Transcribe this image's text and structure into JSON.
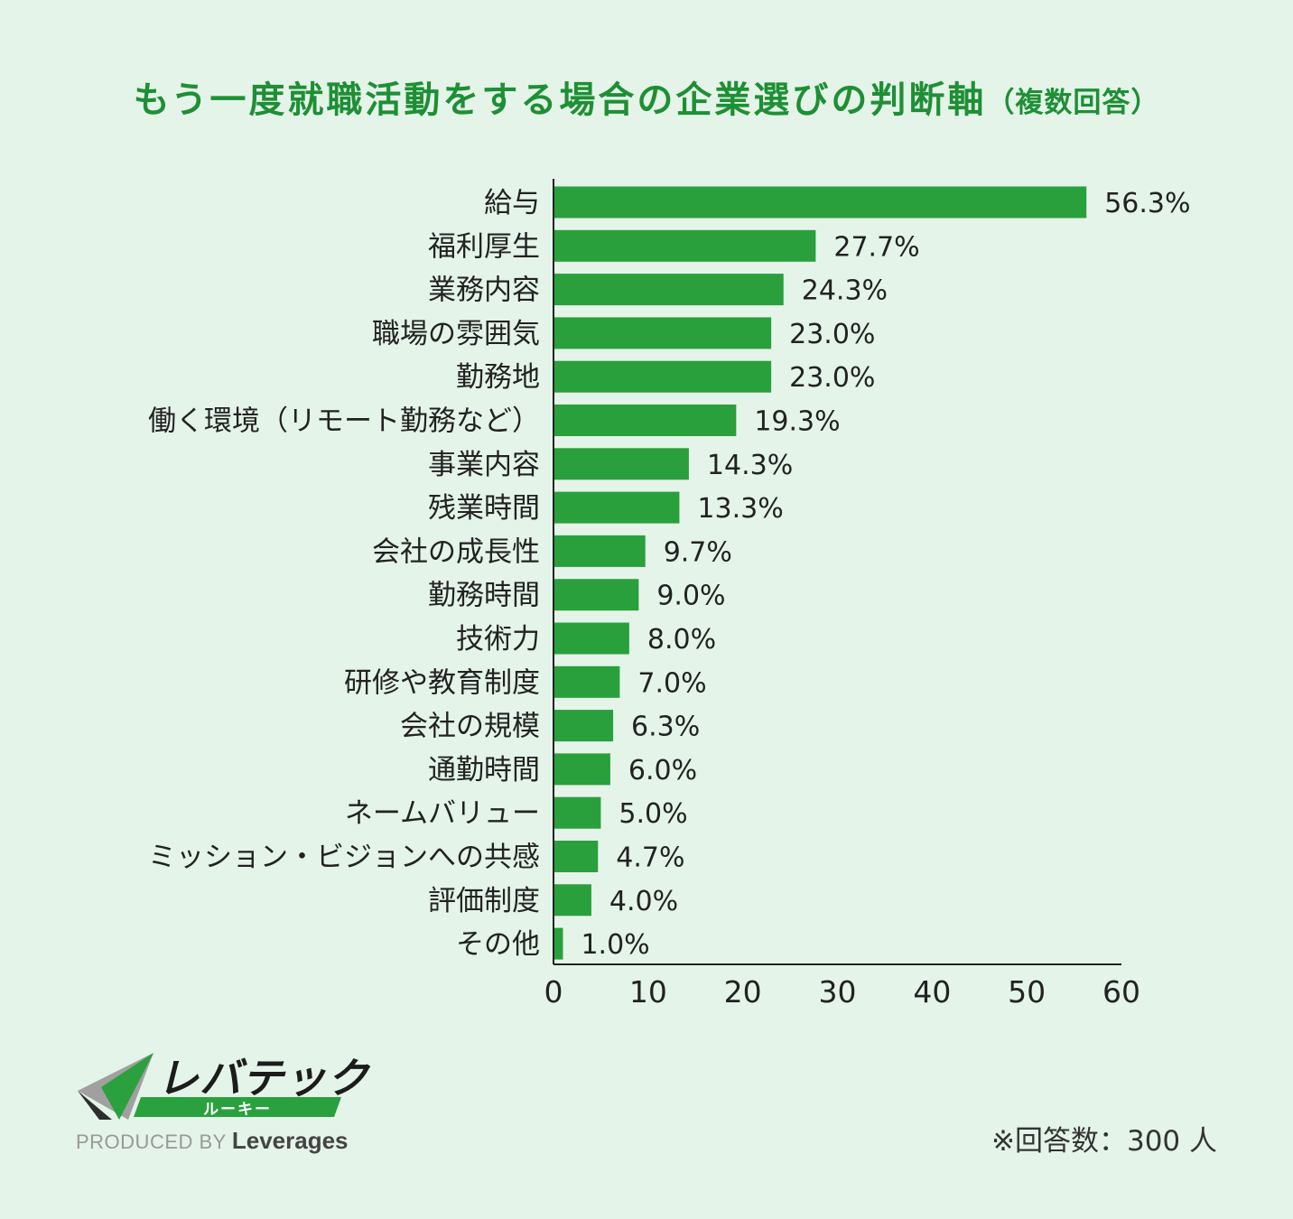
{
  "title": {
    "main": "もう一度就職活動をする場合の企業選びの判断軸",
    "suffix": "（複数回答）"
  },
  "colors": {
    "bar": "#29a03c",
    "title": "#1e8f35",
    "background": "#e4f4e8"
  },
  "chart_data": {
    "type": "bar",
    "orientation": "horizontal",
    "title": "もう一度就職活動をする場合の企業選びの判断軸（複数回答）",
    "categories": [
      "給与",
      "福利厚生",
      "業務内容",
      "職場の雰囲気",
      "勤務地",
      "働く環境（リモート勤務など）",
      "事業内容",
      "残業時間",
      "会社の成長性",
      "勤務時間",
      "技術力",
      "研修や教育制度",
      "会社の規模",
      "通勤時間",
      "ネームバリュー",
      "ミッション・ビジョンへの共感",
      "評価制度",
      "その他"
    ],
    "values": [
      56.3,
      27.7,
      24.3,
      23.0,
      23.0,
      19.3,
      14.3,
      13.3,
      9.7,
      9.0,
      8.0,
      7.0,
      6.3,
      6.0,
      5.0,
      4.7,
      4.0,
      1.0
    ],
    "value_labels": [
      "56.3%",
      "27.7%",
      "24.3%",
      "23.0%",
      "23.0%",
      "19.3%",
      "14.3%",
      "13.3%",
      "9.7%",
      "9.0%",
      "8.0%",
      "7.0%",
      "6.3%",
      "6.0%",
      "5.0%",
      "4.7%",
      "4.0%",
      "1.0%"
    ],
    "xlim": [
      0,
      60
    ],
    "xticks": [
      "0",
      "10",
      "20",
      "30",
      "40",
      "50",
      "60"
    ],
    "xlabel": "",
    "ylabel": "",
    "grid": false
  },
  "logo": {
    "name": "レバテック",
    "band": "ルーキー",
    "produced_by": "PRODUCED BY",
    "brand": "Leverages"
  },
  "note": "※回答数：300 人"
}
